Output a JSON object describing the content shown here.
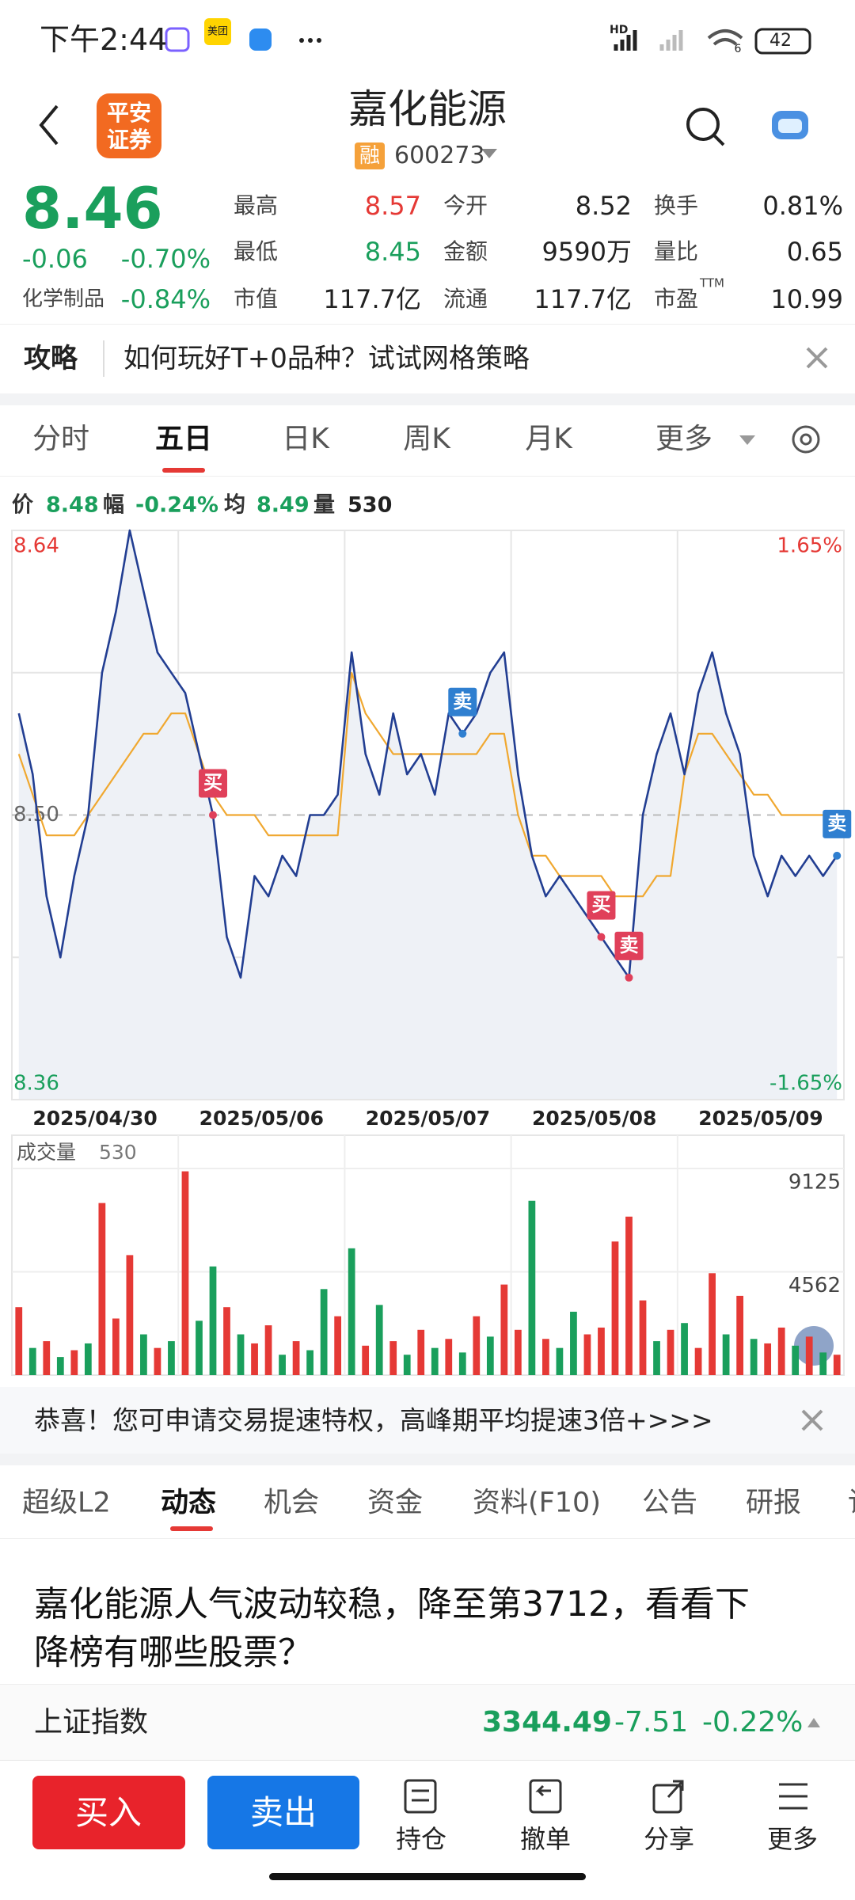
{
  "status_bar": {
    "time": "下午2:44",
    "app_badge": "美团",
    "network": "HD",
    "signal_level": "6",
    "battery": "42"
  },
  "header": {
    "logo": [
      "平安",
      "证券"
    ],
    "title": "嘉化能源",
    "margin_badge": "融",
    "code": "600273"
  },
  "quote": {
    "price": "8.46",
    "change": "-0.06",
    "change_pct": "-0.70%",
    "sector": "化学制品",
    "sector_pct": "-0.84%",
    "fields": [
      {
        "label": "最高",
        "value": "8.57",
        "color": "#e53935"
      },
      {
        "label": "今开",
        "value": "8.52",
        "color": "#222222"
      },
      {
        "label": "换手",
        "value": "0.81%",
        "color": "#222222"
      },
      {
        "label": "最低",
        "value": "8.45",
        "color": "#1a9f5c"
      },
      {
        "label": "金额",
        "value": "9590万",
        "color": "#222222"
      },
      {
        "label": "量比",
        "value": "0.65",
        "color": "#222222"
      },
      {
        "label": "市值",
        "value": "117.7亿",
        "color": "#222222"
      },
      {
        "label": "流通",
        "value": "117.7亿",
        "color": "#222222"
      },
      {
        "label": "市盈",
        "value": "10.99",
        "color": "#222222"
      }
    ],
    "pe_note": "TTM"
  },
  "notice": {
    "tag": "攻略",
    "text": "如何玩好T+0品种？试试网格策略"
  },
  "chart_tabs": {
    "items": [
      "分时",
      "五日",
      "日K",
      "周K",
      "月K",
      "更多"
    ],
    "active": 1
  },
  "info_line": {
    "price_label": "价",
    "price": "8.48",
    "range_label": "幅",
    "range": "-0.24%",
    "avg_label": "均",
    "avg": "8.49",
    "vol_label": "量",
    "vol": "530"
  },
  "chart_data": [
    {
      "type": "line",
      "categories": [
        "2025/04/30",
        "2025/05/06",
        "2025/05/07",
        "2025/05/08",
        "2025/05/09"
      ],
      "ylim": [
        8.36,
        8.64
      ],
      "yticks": [
        8.36,
        {
          "value": 8.5,
          "label": "8.50"
        },
        8.64
      ],
      "y2lim": [
        -1.65,
        1.65
      ],
      "y2ticks": [
        {
          "value": -1.65,
          "label": "-1.65%"
        },
        {
          "value": 1.65,
          "label": "1.65%"
        }
      ],
      "series": [
        {
          "color": "#223e92",
          "values": [
            [
              8.55,
              8.52,
              8.46,
              8.43,
              8.47,
              8.5,
              8.57,
              8.6,
              8.64,
              8.61,
              8.58,
              8.57
            ],
            [
              8.56,
              8.53,
              8.5,
              8.44,
              8.42,
              8.47,
              8.46,
              8.48,
              8.47,
              8.5,
              8.5,
              8.51
            ],
            [
              8.58,
              8.53,
              8.51,
              8.55,
              8.52,
              8.53,
              8.51,
              8.55,
              8.54,
              8.55,
              8.57,
              8.58
            ],
            [
              8.52,
              8.48,
              8.46,
              8.47,
              8.46,
              8.45,
              8.44,
              8.43,
              8.42,
              8.5,
              8.53,
              8.55
            ],
            [
              8.52,
              8.56,
              8.58,
              8.55,
              8.53,
              8.48,
              8.46,
              8.48,
              8.47,
              8.48,
              8.47,
              8.48
            ]
          ]
        },
        {
          "color": "#f0a830",
          "values": [
            [
              8.53,
              8.51,
              8.49,
              8.49,
              8.49,
              8.5,
              8.51,
              8.52,
              8.53,
              8.54,
              8.54,
              8.55
            ],
            [
              8.55,
              8.53,
              8.51,
              8.5,
              8.5,
              8.5,
              8.49,
              8.49,
              8.49,
              8.49,
              8.49,
              8.49
            ],
            [
              8.57,
              8.55,
              8.54,
              8.53,
              8.53,
              8.53,
              8.53,
              8.53,
              8.53,
              8.53,
              8.54,
              8.54
            ],
            [
              8.5,
              8.48,
              8.48,
              8.47,
              8.47,
              8.47,
              8.47,
              8.46,
              8.46,
              8.46,
              8.47,
              8.47
            ],
            [
              8.52,
              8.54,
              8.54,
              8.53,
              8.52,
              8.51,
              8.51,
              8.5,
              8.5,
              8.5,
              8.5,
              8.49
            ]
          ]
        }
      ],
      "signals": [
        {
          "label": "买",
          "color": "#e0405a"
        },
        {
          "label": "卖",
          "color": "#2f7fd0"
        },
        {
          "label": "买",
          "color": "#e0405a"
        },
        {
          "label": "卖",
          "color": "#e0405a"
        },
        {
          "label": "卖",
          "color": "#2f7fd0"
        }
      ]
    },
    {
      "type": "bar",
      "title": "成交量",
      "latest": 530,
      "ylim": [
        0,
        9125
      ],
      "yticks": [
        4562,
        9125
      ],
      "values": [
        3000,
        1200,
        1500,
        800,
        1100,
        1400,
        7600,
        2500,
        5300,
        1800,
        1200,
        1500,
        9000,
        2400,
        4800,
        3000,
        1800,
        1400,
        2200,
        900,
        1500,
        1100,
        3800,
        2600,
        5600,
        1300,
        3100,
        1500,
        900,
        2000,
        1200,
        1600,
        1000,
        2600,
        1700,
        4000,
        2000,
        7700,
        1600,
        1200,
        2800,
        1800,
        2100,
        5900,
        7000,
        3300,
        1500,
        2000,
        2300,
        1200,
        4500,
        1800,
        3500,
        1600,
        1400,
        2100,
        1300,
        1700,
        1000,
        900
      ],
      "colors": [
        "#e53935",
        "#1a9f5c",
        "#e53935",
        "#1a9f5c",
        "#e53935",
        "#1a9f5c",
        "#e53935",
        "#e53935",
        "#e53935",
        "#1a9f5c",
        "#e53935",
        "#1a9f5c",
        "#e53935",
        "#1a9f5c",
        "#1a9f5c",
        "#e53935",
        "#1a9f5c",
        "#e53935",
        "#e53935",
        "#1a9f5c",
        "#e53935",
        "#1a9f5c",
        "#1a9f5c",
        "#e53935",
        "#1a9f5c",
        "#e53935",
        "#1a9f5c",
        "#e53935",
        "#1a9f5c",
        "#e53935",
        "#1a9f5c",
        "#e53935",
        "#1a9f5c",
        "#e53935",
        "#1a9f5c",
        "#e53935",
        "#e53935",
        "#1a9f5c",
        "#e53935",
        "#1a9f5c",
        "#1a9f5c",
        "#e53935",
        "#e53935",
        "#e53935",
        "#e53935",
        "#e53935",
        "#1a9f5c",
        "#e53935",
        "#1a9f5c",
        "#e53935",
        "#e53935",
        "#1a9f5c",
        "#e53935",
        "#1a9f5c",
        "#e53935",
        "#e53935",
        "#1a9f5c",
        "#e53935",
        "#1a9f5c",
        "#e53935"
      ]
    }
  ],
  "banner": {
    "text": "恭喜！您可申请交易提速特权，高峰期平均提速3倍+>>>"
  },
  "news_tabs": {
    "items": [
      "超级L2",
      "动态",
      "机会",
      "资金",
      "资料(F10)",
      "公告",
      "研报",
      "讨"
    ],
    "active": 1
  },
  "headline": [
    "嘉化能源人气波动较稳，降至第3712，看看下",
    "降榜有哪些股票？"
  ],
  "index_row": {
    "name": "上证指数",
    "value": "3344.49",
    "change": "-7.51",
    "pct": "-0.22%"
  },
  "bottom_bar": {
    "buy": "买入",
    "sell": "卖出",
    "items": [
      "持仓",
      "撤单",
      "分享",
      "更多"
    ]
  }
}
